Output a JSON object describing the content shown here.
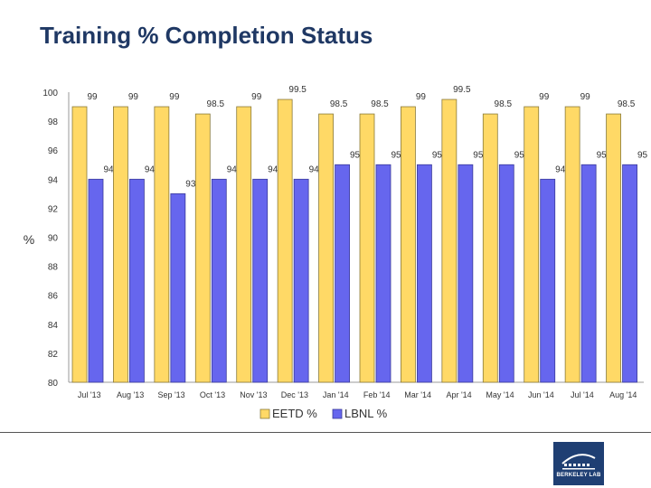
{
  "title": "Training % Completion Status",
  "logo_text": "BERKELEY LAB",
  "chart_data": {
    "type": "bar",
    "categories": [
      "Jul '13",
      "Aug '13",
      "Sep '13",
      "Oct '13",
      "Nov '13",
      "Dec '13",
      "Jan '14",
      "Feb '14",
      "Mar '14",
      "Apr '14",
      "May '14",
      "Jun '14",
      "Jul '14",
      "Aug '14"
    ],
    "series": [
      {
        "name": "EETD %",
        "color": "#ffd966",
        "stroke": "#8a7a3a",
        "values": [
          99,
          99,
          99,
          98.5,
          99,
          99.5,
          98.5,
          98.5,
          99,
          99.5,
          98.5,
          99,
          99,
          98.5
        ]
      },
      {
        "name": "LBNL %",
        "color": "#6666ee",
        "stroke": "#3a3a9a",
        "values": [
          94,
          94,
          93,
          94,
          94,
          94,
          95,
          95,
          95,
          95,
          95,
          94,
          95,
          95
        ]
      }
    ],
    "ylabel": "%",
    "ylim": [
      80,
      100
    ],
    "yticks": [
      80,
      82,
      84,
      86,
      88,
      90,
      92,
      94,
      96,
      98,
      100
    ],
    "legend_position": "bottom",
    "grid": false
  }
}
